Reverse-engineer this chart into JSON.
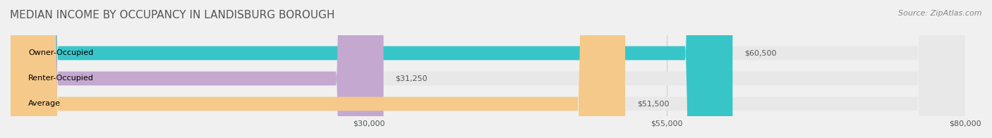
{
  "title": "MEDIAN INCOME BY OCCUPANCY IN LANDISBURG BOROUGH",
  "source": "Source: ZipAtlas.com",
  "categories": [
    "Owner-Occupied",
    "Renter-Occupied",
    "Average"
  ],
  "values": [
    60500,
    31250,
    51500
  ],
  "bar_colors": [
    "#38C5C8",
    "#C4A8D0",
    "#F5C98A"
  ],
  "bar_labels": [
    "$60,500",
    "$31,250",
    "$51,500"
  ],
  "xlim": [
    0,
    80000
  ],
  "xticks": [
    30000,
    55000,
    80000
  ],
  "xtick_labels": [
    "$30,000",
    "$55,000",
    "$80,000"
  ],
  "background_color": "#f0f0f0",
  "bar_background_color": "#e8e8e8",
  "title_fontsize": 11,
  "source_fontsize": 8,
  "label_fontsize": 8,
  "tick_fontsize": 8
}
